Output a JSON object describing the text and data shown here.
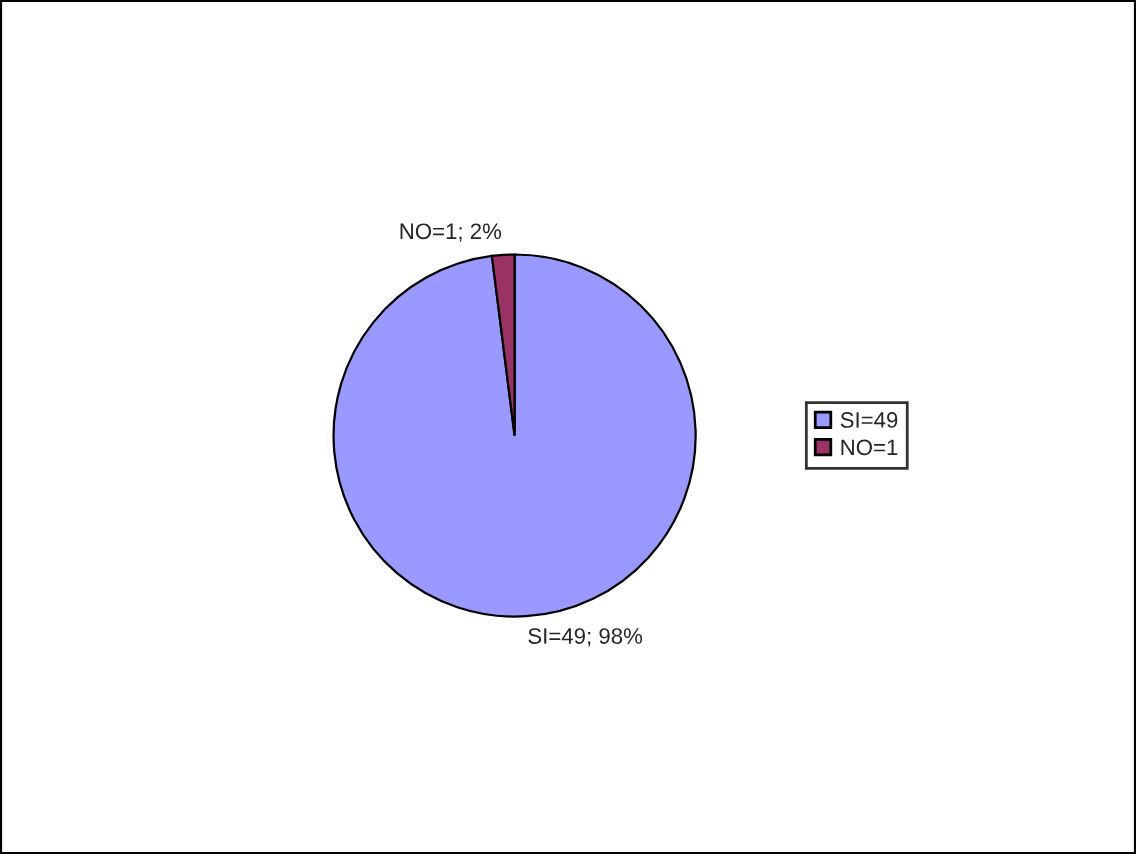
{
  "chart_data": {
    "type": "pie",
    "categories": [
      "SI=49",
      "NO=1"
    ],
    "values": [
      49,
      1
    ],
    "colors": [
      "#9999ff",
      "#993366"
    ],
    "value_labels": [
      "SI=49; 98%",
      "NO=1; 2%"
    ],
    "legend": "right"
  }
}
